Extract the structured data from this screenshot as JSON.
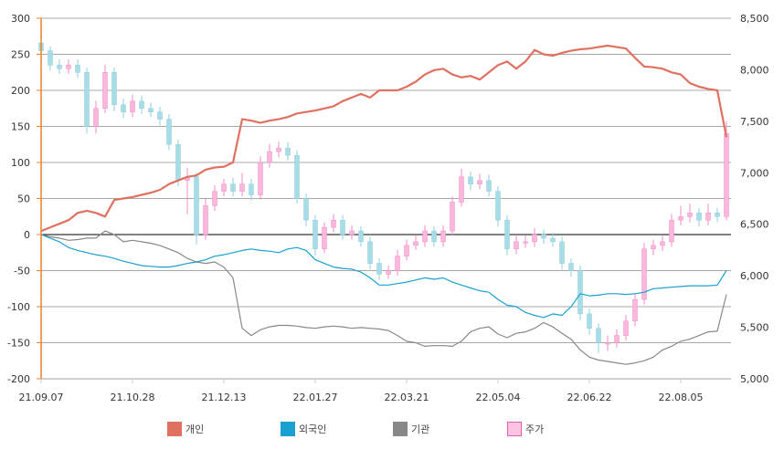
{
  "chart_data": {
    "type": "candlestick+line",
    "x_tick_labels": [
      "21.09.07",
      "21.10.28",
      "21.12.13",
      "22.01.27",
      "22.03.21",
      "22.05.04",
      "22.06.22",
      "22.08.05"
    ],
    "left_axis": {
      "ylim": [
        -200,
        300
      ],
      "ticks": [
        300,
        250,
        200,
        150,
        100,
        50,
        0,
        -50,
        -100,
        -150,
        -200
      ]
    },
    "right_axis": {
      "ylim": [
        5000,
        8500
      ],
      "ticks": [
        "8,500",
        "8,000",
        "7,500",
        "7,000",
        "6,500",
        "6,000",
        "5,500",
        "5,000"
      ]
    },
    "grid": true,
    "legend_position": "bottom",
    "colors": {
      "individual": "#e07060",
      "foreign": "#1aa0d0",
      "institution": "#888888",
      "price_up": "#f9b8dc",
      "price_up_border": "#f08cc4",
      "price_down": "#a8dce6",
      "price_down_border": "#90cedb",
      "left_axis": "#e8802a"
    },
    "series": [
      {
        "name": "개인",
        "axis": "left",
        "values": [
          5,
          10,
          15,
          20,
          30,
          33,
          30,
          25,
          48,
          50,
          52,
          55,
          58,
          62,
          70,
          75,
          80,
          82,
          90,
          93,
          94,
          100,
          160,
          158,
          155,
          158,
          160,
          163,
          168,
          170,
          172,
          175,
          178,
          185,
          190,
          195,
          190,
          200,
          200,
          200,
          205,
          212,
          222,
          228,
          230,
          222,
          218,
          220,
          215,
          225,
          235,
          240,
          230,
          240,
          256,
          250,
          248,
          252,
          255,
          257,
          258,
          260,
          262,
          260,
          258,
          245,
          233,
          232,
          230,
          225,
          222,
          210,
          205,
          202,
          200,
          135
        ]
      },
      {
        "name": "외국인",
        "axis": "left",
        "values": [
          0,
          -5,
          -10,
          -18,
          -22,
          -25,
          -28,
          -30,
          -33,
          -37,
          -40,
          -43,
          -44,
          -45,
          -45,
          -43,
          -40,
          -38,
          -35,
          -30,
          -28,
          -25,
          -22,
          -20,
          -22,
          -23,
          -25,
          -20,
          -18,
          -22,
          -35,
          -40,
          -45,
          -47,
          -48,
          -52,
          -60,
          -70,
          -70,
          -68,
          -66,
          -63,
          -60,
          -62,
          -60,
          -66,
          -70,
          -74,
          -78,
          -80,
          -90,
          -98,
          -100,
          -108,
          -112,
          -115,
          -110,
          -112,
          -100,
          -82,
          -85,
          -84,
          -82,
          -82,
          -83,
          -82,
          -80,
          -75,
          -74,
          -73,
          -72,
          -71,
          -71,
          -71,
          -70,
          -50
        ]
      },
      {
        "name": "기관",
        "axis": "left",
        "values": [
          0,
          -3,
          -5,
          -8,
          -7,
          -5,
          -5,
          5,
          0,
          -10,
          -8,
          -10,
          -12,
          -15,
          -20,
          -25,
          -33,
          -38,
          -40,
          -38,
          -45,
          -60,
          -130,
          -140,
          -132,
          -128,
          -126,
          -126,
          -127,
          -129,
          -130,
          -128,
          -127,
          -128,
          -130,
          -129,
          -130,
          -131,
          -133,
          -140,
          -148,
          -150,
          -155,
          -154,
          -154,
          -155,
          -148,
          -135,
          -130,
          -128,
          -138,
          -143,
          -137,
          -135,
          -130,
          -122,
          -128,
          -137,
          -145,
          -160,
          -170,
          -174,
          -176,
          -178,
          -180,
          -178,
          -175,
          -170,
          -160,
          -155,
          -148,
          -145,
          -140,
          -135,
          -134,
          -83
        ]
      }
    ],
    "price": {
      "name": "주가",
      "axis": "right",
      "ohlc": [
        [
          8260,
          8320,
          8130,
          8185
        ],
        [
          8185,
          8230,
          7990,
          8045
        ],
        [
          8045,
          8100,
          7960,
          8010
        ],
        [
          8010,
          8100,
          7960,
          8045
        ],
        [
          8045,
          8100,
          7920,
          7975
        ],
        [
          7975,
          8020,
          7380,
          7450
        ],
        [
          7450,
          7700,
          7380,
          7625
        ],
        [
          7625,
          8050,
          7580,
          7975
        ],
        [
          7975,
          8020,
          7600,
          7660
        ],
        [
          7660,
          7720,
          7530,
          7590
        ],
        [
          7590,
          7760,
          7540,
          7695
        ],
        [
          7695,
          7750,
          7570,
          7625
        ],
        [
          7625,
          7680,
          7540,
          7590
        ],
        [
          7590,
          7640,
          7460,
          7520
        ],
        [
          7520,
          7570,
          7220,
          7275
        ],
        [
          7275,
          7320,
          6870,
          6925
        ],
        [
          6925,
          7050,
          6600,
          6960
        ],
        [
          6960,
          7000,
          6300,
          6400
        ],
        [
          6400,
          6750,
          6350,
          6680
        ],
        [
          6680,
          6880,
          6630,
          6820
        ],
        [
          6820,
          6940,
          6770,
          6890
        ],
        [
          6890,
          6950,
          6770,
          6820
        ],
        [
          6820,
          7000,
          6770,
          6890
        ],
        [
          6890,
          6940,
          6730,
          6785
        ],
        [
          6785,
          7160,
          6740,
          7100
        ],
        [
          7100,
          7280,
          7050,
          7205
        ],
        [
          7205,
          7300,
          7150,
          7240
        ],
        [
          7240,
          7300,
          7120,
          7170
        ],
        [
          7170,
          7220,
          6700,
          6750
        ],
        [
          6750,
          6800,
          6480,
          6540
        ],
        [
          6540,
          6590,
          6200,
          6260
        ],
        [
          6260,
          6520,
          6220,
          6470
        ],
        [
          6470,
          6600,
          6420,
          6540
        ],
        [
          6540,
          6590,
          6350,
          6400
        ],
        [
          6400,
          6490,
          6350,
          6435
        ],
        [
          6435,
          6480,
          6280,
          6330
        ],
        [
          6330,
          6380,
          6060,
          6120
        ],
        [
          6120,
          6170,
          5960,
          6015
        ],
        [
          6015,
          6100,
          5970,
          6050
        ],
        [
          6050,
          6250,
          6000,
          6190
        ],
        [
          6190,
          6350,
          6150,
          6295
        ],
        [
          6295,
          6390,
          6250,
          6330
        ],
        [
          6330,
          6490,
          6280,
          6435
        ],
        [
          6435,
          6480,
          6280,
          6330
        ],
        [
          6330,
          6490,
          6280,
          6435
        ],
        [
          6435,
          6770,
          6390,
          6715
        ],
        [
          6715,
          7040,
          6670,
          6960
        ],
        [
          6960,
          7010,
          6830,
          6890
        ],
        [
          6890,
          6990,
          6840,
          6925
        ],
        [
          6925,
          6980,
          6770,
          6820
        ],
        [
          6820,
          6870,
          6480,
          6540
        ],
        [
          6540,
          6590,
          6200,
          6260
        ],
        [
          6260,
          6400,
          6210,
          6330
        ],
        [
          6330,
          6390,
          6270,
          6330
        ],
        [
          6330,
          6460,
          6280,
          6400
        ],
        [
          6400,
          6450,
          6310,
          6365
        ],
        [
          6365,
          6420,
          6280,
          6330
        ],
        [
          6330,
          6380,
          6060,
          6120
        ],
        [
          6120,
          6170,
          5990,
          6050
        ],
        [
          6050,
          6100,
          5570,
          5630
        ],
        [
          5630,
          5680,
          5430,
          5490
        ],
        [
          5490,
          5540,
          5250,
          5350
        ],
        [
          5350,
          5420,
          5270,
          5350
        ],
        [
          5350,
          5480,
          5300,
          5420
        ],
        [
          5420,
          5620,
          5370,
          5560
        ],
        [
          5560,
          5830,
          5510,
          5770
        ],
        [
          5770,
          6320,
          5720,
          6260
        ],
        [
          6260,
          6350,
          6200,
          6295
        ],
        [
          6295,
          6390,
          6240,
          6330
        ],
        [
          6330,
          6600,
          6280,
          6540
        ],
        [
          6540,
          6680,
          6490,
          6575
        ],
        [
          6575,
          6700,
          6520,
          6610
        ],
        [
          6610,
          6660,
          6480,
          6540
        ],
        [
          6540,
          6700,
          6490,
          6610
        ],
        [
          6610,
          6660,
          6520,
          6575
        ],
        [
          6575,
          7500,
          6540,
          7380
        ]
      ]
    }
  },
  "legend": [
    {
      "label": "개인"
    },
    {
      "label": "외국인"
    },
    {
      "label": "기관"
    },
    {
      "label": "주가"
    }
  ]
}
